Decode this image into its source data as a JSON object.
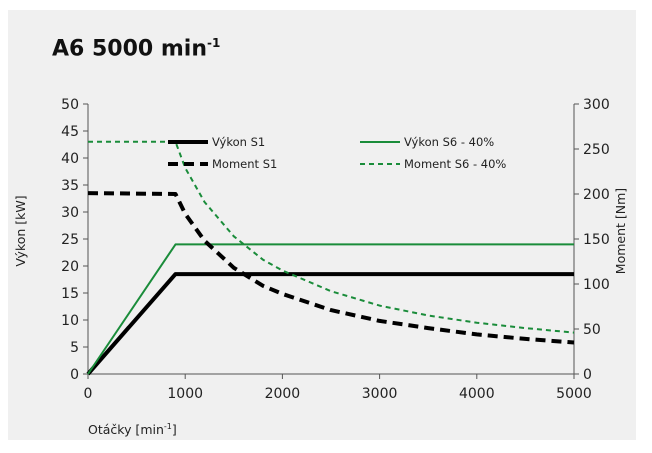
{
  "title": "A6 5000 min",
  "title_sup": "-1",
  "colors": {
    "black": "#000000",
    "green": "#1a8c3a",
    "background": "#f0f0f0",
    "axis": "#555555"
  },
  "chart_data": {
    "type": "line",
    "title": "A6 5000 min-1",
    "xlabel": "Otáčky [min",
    "xlabel_sup": "-1",
    "xlabel_end": "]",
    "ylabel_left": "Výkon [kW]",
    "ylabel_right": "Moment [Nm]",
    "xlim": [
      0,
      5000
    ],
    "ylim_left": [
      0,
      50
    ],
    "ylim_right": [
      0,
      300
    ],
    "x_ticks": [
      0,
      1000,
      2000,
      3000,
      4000,
      5000
    ],
    "y_left_ticks": [
      0,
      5,
      10,
      15,
      20,
      25,
      30,
      35,
      40,
      45,
      50
    ],
    "y_right_ticks": [
      0,
      50,
      100,
      150,
      200,
      250,
      300
    ],
    "legend_position": "top-center",
    "series": [
      {
        "name": "Výkon S1",
        "axis": "left",
        "color": "#000000",
        "style": "solid",
        "width": 4,
        "x": [
          0,
          900,
          5000
        ],
        "y": [
          0,
          18.5,
          18.5
        ]
      },
      {
        "name": "Výkon S6 - 40%",
        "axis": "left",
        "color": "#1a8c3a",
        "style": "solid",
        "width": 2,
        "x": [
          0,
          900,
          5000
        ],
        "y": [
          0,
          24,
          24
        ]
      },
      {
        "name": "Moment S1",
        "axis": "right",
        "color": "#000000",
        "style": "dashed",
        "width": 4,
        "x": [
          0,
          900,
          1000,
          1200,
          1500,
          1800,
          2000,
          2500,
          3000,
          3500,
          4000,
          4500,
          5000
        ],
        "y": [
          201,
          200,
          178,
          148,
          118,
          98,
          89,
          71,
          59,
          51,
          44,
          39,
          35
        ]
      },
      {
        "name": "Moment S6 - 40%",
        "axis": "right",
        "color": "#1a8c3a",
        "style": "dashed",
        "width": 2,
        "x": [
          0,
          900,
          1000,
          1200,
          1500,
          1800,
          2000,
          2500,
          3000,
          3500,
          4000,
          4500,
          5000
        ],
        "y": [
          258,
          258,
          229,
          191,
          153,
          127,
          115,
          92,
          76,
          65,
          57,
          51,
          46
        ]
      }
    ]
  }
}
